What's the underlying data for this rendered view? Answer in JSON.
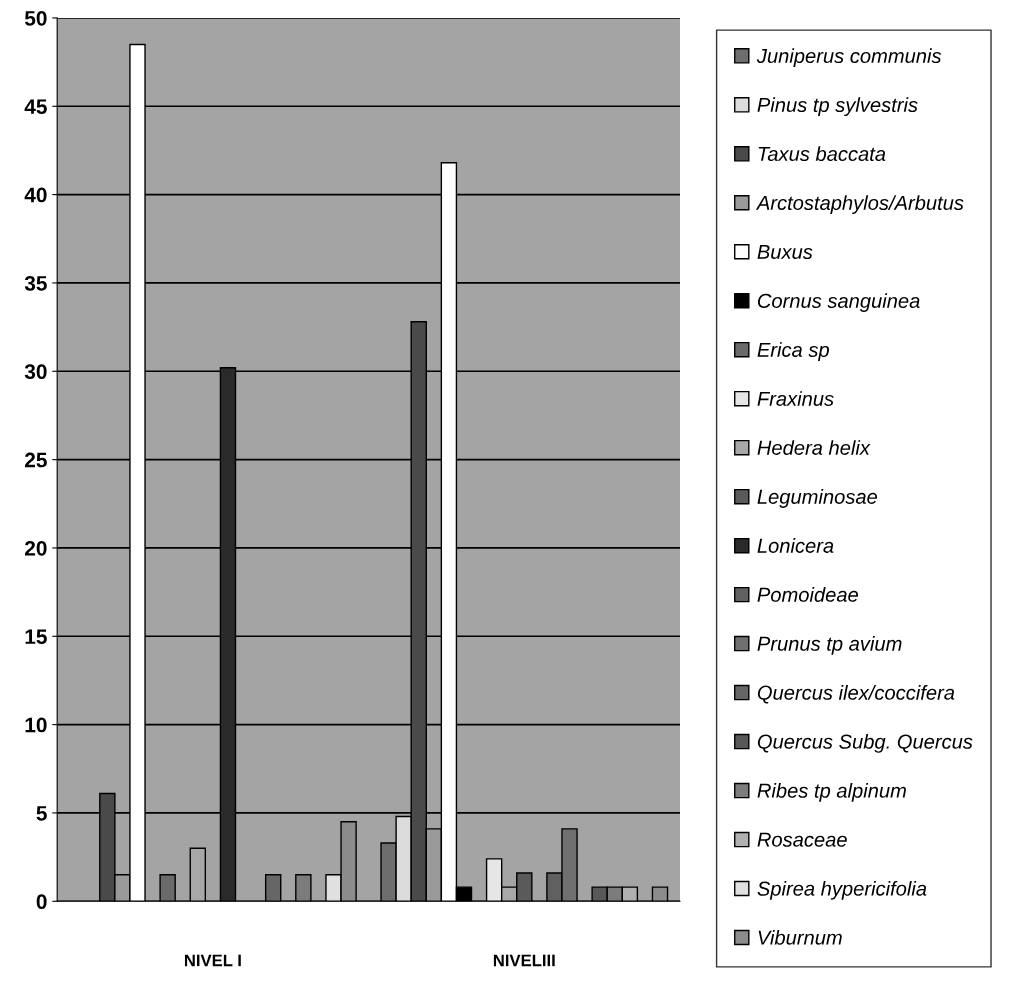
{
  "chart_data": {
    "type": "bar",
    "categories": [
      "NIVEL I",
      "NIVELIII"
    ],
    "series": [
      {
        "name": "Juniperus communis",
        "color": "#6e6e6e",
        "values": [
          null,
          3.3
        ]
      },
      {
        "name": "Pinus tp sylvestris",
        "color": "#dcdcdc",
        "values": [
          null,
          4.8
        ]
      },
      {
        "name": "Taxus baccata",
        "color": "#4a4a4a",
        "values": [
          6.1,
          32.8
        ]
      },
      {
        "name": "Arctostaphylos/Arbutus",
        "color": "#9a9a9a",
        "values": [
          1.5,
          4.1
        ]
      },
      {
        "name": "Buxus",
        "color": "#ffffff",
        "values": [
          48.5,
          41.8
        ]
      },
      {
        "name": "Cornus sanguinea",
        "color": "#000000",
        "values": [
          null,
          0.8
        ]
      },
      {
        "name": "Erica sp",
        "color": "#6a6a6a",
        "values": [
          1.5,
          null
        ]
      },
      {
        "name": "Fraxinus",
        "color": "#e6e6e6",
        "values": [
          null,
          2.4
        ]
      },
      {
        "name": "Hedera helix",
        "color": "#a8a8a8",
        "values": [
          3.0,
          0.8
        ]
      },
      {
        "name": "Leguminosae",
        "color": "#5a5a5a",
        "values": [
          null,
          1.6
        ]
      },
      {
        "name": "Lonicera",
        "color": "#2a2a2a",
        "values": [
          30.2,
          null
        ]
      },
      {
        "name": "Pomoideae",
        "color": "#606060",
        "values": [
          null,
          1.6
        ]
      },
      {
        "name": "Prunus tp avium",
        "color": "#707070",
        "values": [
          null,
          4.1
        ]
      },
      {
        "name": "Quercus ilex/coccifera",
        "color": "#666666",
        "values": [
          1.5,
          null
        ]
      },
      {
        "name": "Quercus Subg. Quercus",
        "color": "#585858",
        "values": [
          null,
          0.8
        ]
      },
      {
        "name": "Ribes tp alpinum",
        "color": "#7c7c7c",
        "values": [
          1.5,
          0.8
        ]
      },
      {
        "name": "Rosaceae",
        "color": "#b0b0b0",
        "values": [
          null,
          0.8
        ]
      },
      {
        "name": "Spirea hypericifolia",
        "color": "#e0e0e0",
        "values": [
          1.5,
          null
        ]
      },
      {
        "name": "Viburnum",
        "color": "#8c8c8c",
        "values": [
          4.5,
          0.8
        ]
      }
    ],
    "ylim": [
      0,
      50
    ],
    "yticks": [
      0,
      5,
      10,
      15,
      20,
      25,
      30,
      35,
      40,
      45,
      50
    ],
    "grid": "y",
    "legend": "right"
  }
}
